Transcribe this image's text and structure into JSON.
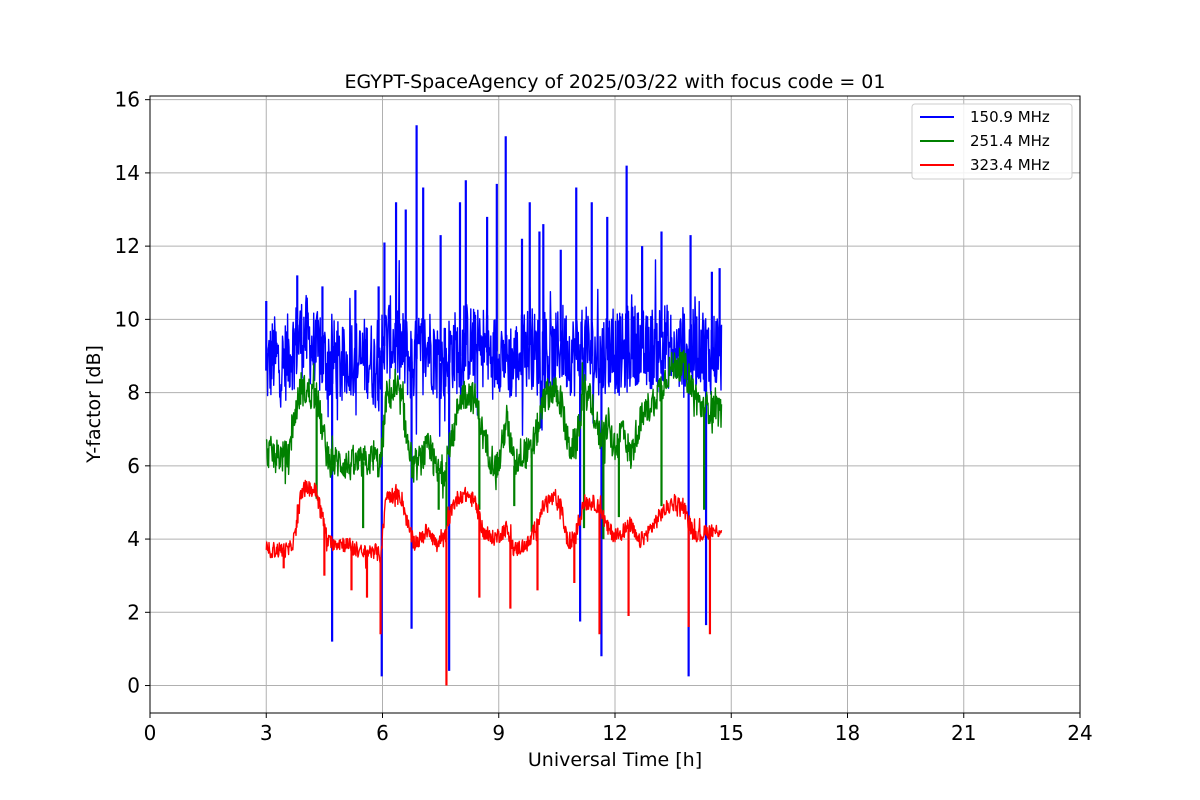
{
  "chart_data": {
    "type": "line",
    "title": "EGYPT-SpaceAgency of 2025/03/22 with focus code = 01",
    "xlabel": "Universal Time [h]",
    "ylabel": "Y-factor [dB]",
    "xlim": [
      0,
      24
    ],
    "ylim": [
      -0.75,
      16.1
    ],
    "xticks": [
      0,
      3,
      6,
      9,
      12,
      15,
      18,
      21,
      24
    ],
    "yticks": [
      0,
      2,
      4,
      6,
      8,
      10,
      12,
      14,
      16
    ],
    "grid": true,
    "legend_position": "top-right",
    "series": [
      {
        "name": "150.9 MHz",
        "color": "#0000ff",
        "x": [
          3.0,
          3.2,
          3.4,
          3.6,
          3.8,
          4.0,
          4.2,
          4.4,
          4.6,
          4.8,
          5.0,
          5.2,
          5.4,
          5.6,
          5.8,
          6.0,
          6.2,
          6.4,
          6.6,
          6.8,
          7.0,
          7.2,
          7.4,
          7.6,
          7.8,
          8.0,
          8.2,
          8.4,
          8.6,
          8.8,
          9.0,
          9.2,
          9.4,
          9.6,
          9.8,
          10.0,
          10.2,
          10.4,
          10.6,
          10.8,
          11.0,
          11.2,
          11.4,
          11.6,
          11.8,
          12.0,
          12.2,
          12.4,
          12.6,
          12.8,
          13.0,
          13.2,
          13.4,
          13.6,
          13.8,
          14.0,
          14.2,
          14.4,
          14.6,
          14.75
        ],
        "y": [
          8.6,
          9.0,
          8.7,
          9.1,
          9.4,
          9.6,
          9.2,
          9.0,
          8.8,
          8.9,
          8.6,
          9.1,
          8.8,
          9.0,
          8.7,
          9.2,
          9.5,
          9.3,
          9.0,
          8.8,
          9.1,
          9.3,
          8.9,
          8.8,
          9.2,
          9.0,
          9.4,
          9.1,
          9.3,
          8.9,
          9.2,
          9.0,
          8.8,
          9.1,
          9.3,
          9.0,
          9.2,
          8.8,
          9.4,
          9.1,
          9.0,
          9.3,
          9.0,
          8.9,
          9.2,
          9.1,
          9.0,
          9.2,
          9.4,
          9.0,
          9.3,
          9.5,
          9.2,
          9.0,
          9.3,
          9.1,
          9.4,
          9.0,
          9.2,
          9.0
        ],
        "spikes": [
          [
            3.0,
            10.5
          ],
          [
            3.8,
            11.2
          ],
          [
            4.45,
            10.9
          ],
          [
            4.7,
            1.2
          ],
          [
            5.3,
            10.8
          ],
          [
            5.9,
            10.9
          ],
          [
            5.98,
            0.25
          ],
          [
            6.05,
            12.1
          ],
          [
            6.35,
            13.2
          ],
          [
            6.6,
            13.0
          ],
          [
            6.75,
            1.55
          ],
          [
            6.88,
            15.3
          ],
          [
            7.05,
            13.6
          ],
          [
            7.5,
            12.3
          ],
          [
            7.72,
            0.4
          ],
          [
            8.0,
            13.2
          ],
          [
            8.15,
            13.8
          ],
          [
            8.7,
            12.8
          ],
          [
            8.95,
            13.7
          ],
          [
            9.18,
            15.0
          ],
          [
            9.6,
            12.2
          ],
          [
            9.8,
            13.2
          ],
          [
            10.05,
            12.4
          ],
          [
            10.15,
            12.6
          ],
          [
            10.6,
            11.9
          ],
          [
            11.0,
            13.6
          ],
          [
            11.1,
            1.75
          ],
          [
            11.4,
            13.2
          ],
          [
            11.65,
            0.8
          ],
          [
            11.8,
            12.8
          ],
          [
            12.3,
            14.2
          ],
          [
            12.7,
            12.0
          ],
          [
            13.2,
            12.4
          ],
          [
            13.9,
            0.25
          ],
          [
            13.95,
            12.3
          ],
          [
            14.35,
            1.65
          ],
          [
            14.5,
            11.3
          ],
          [
            14.7,
            11.4
          ]
        ]
      },
      {
        "name": "251.4 MHz",
        "color": "#008000",
        "x": [
          3.0,
          3.3,
          3.6,
          3.75,
          3.9,
          4.1,
          4.3,
          4.45,
          4.6,
          4.9,
          5.2,
          5.5,
          5.8,
          5.95,
          6.1,
          6.3,
          6.5,
          6.65,
          6.8,
          7.0,
          7.2,
          7.4,
          7.6,
          7.8,
          8.0,
          8.2,
          8.4,
          8.6,
          8.8,
          9.0,
          9.2,
          9.4,
          9.6,
          9.8,
          10.0,
          10.2,
          10.4,
          10.6,
          10.8,
          11.0,
          11.2,
          11.4,
          11.6,
          11.8,
          12.0,
          12.2,
          12.4,
          12.6,
          12.8,
          13.0,
          13.2,
          13.4,
          13.6,
          13.8,
          14.0,
          14.2,
          14.4,
          14.6,
          14.75
        ],
        "y": [
          6.4,
          6.3,
          6.2,
          7.5,
          8.1,
          8.0,
          7.9,
          7.0,
          6.1,
          6.1,
          6.0,
          6.1,
          6.2,
          6.0,
          7.9,
          8.0,
          7.8,
          6.6,
          5.9,
          6.2,
          6.5,
          5.8,
          5.9,
          6.7,
          7.9,
          8.0,
          7.8,
          6.8,
          6.2,
          6.0,
          7.3,
          6.0,
          6.4,
          6.3,
          7.0,
          7.9,
          8.1,
          7.8,
          6.5,
          6.6,
          8.1,
          7.7,
          6.8,
          7.1,
          6.4,
          7.1,
          6.2,
          7.1,
          7.5,
          7.8,
          8.2,
          8.6,
          8.8,
          8.7,
          8.1,
          7.6,
          7.6,
          7.6,
          7.4
        ],
        "spikes": [
          [
            4.3,
            5.1
          ],
          [
            5.5,
            4.3
          ],
          [
            7.45,
            4.8
          ],
          [
            7.65,
            4.0
          ],
          [
            8.5,
            4.8
          ],
          [
            9.4,
            4.9
          ],
          [
            9.85,
            4.2
          ],
          [
            11.2,
            4.3
          ],
          [
            11.7,
            4.0
          ],
          [
            12.1,
            4.6
          ],
          [
            13.2,
            4.9
          ],
          [
            14.3,
            4.8
          ]
        ]
      },
      {
        "name": "323.4 MHz",
        "color": "#ff0000",
        "x": [
          3.0,
          3.3,
          3.6,
          3.75,
          3.9,
          4.1,
          4.3,
          4.45,
          4.6,
          4.9,
          5.2,
          5.5,
          5.8,
          5.95,
          6.1,
          6.3,
          6.5,
          6.65,
          6.8,
          7.0,
          7.2,
          7.4,
          7.6,
          7.8,
          8.0,
          8.2,
          8.4,
          8.6,
          8.8,
          9.0,
          9.2,
          9.4,
          9.6,
          9.8,
          10.0,
          10.2,
          10.4,
          10.6,
          10.8,
          11.0,
          11.2,
          11.4,
          11.6,
          11.8,
          12.0,
          12.2,
          12.4,
          12.6,
          12.8,
          13.0,
          13.2,
          13.4,
          13.6,
          13.8,
          14.0,
          14.2,
          14.4,
          14.6,
          14.75
        ],
        "y": [
          3.7,
          3.7,
          3.7,
          4.1,
          5.3,
          5.4,
          5.3,
          4.6,
          3.9,
          3.9,
          3.8,
          3.6,
          3.7,
          3.5,
          5.2,
          5.2,
          5.1,
          4.4,
          3.9,
          4.0,
          4.3,
          3.8,
          4.0,
          4.9,
          5.2,
          5.2,
          5.0,
          4.2,
          4.0,
          4.1,
          4.3,
          3.7,
          3.8,
          3.9,
          4.5,
          5.0,
          5.1,
          4.9,
          3.8,
          4.2,
          5.0,
          5.0,
          4.9,
          4.3,
          4.1,
          4.2,
          4.4,
          3.9,
          4.1,
          4.4,
          4.7,
          4.9,
          5.0,
          4.8,
          4.2,
          4.1,
          4.2,
          4.2,
          4.3
        ],
        "spikes": [
          [
            3.45,
            3.2
          ],
          [
            4.5,
            3.0
          ],
          [
            5.2,
            2.6
          ],
          [
            5.6,
            2.4
          ],
          [
            5.95,
            1.4
          ],
          [
            7.65,
            0.0
          ],
          [
            8.5,
            2.4
          ],
          [
            9.3,
            2.1
          ],
          [
            10.0,
            2.6
          ],
          [
            10.95,
            2.8
          ],
          [
            11.6,
            1.4
          ],
          [
            12.35,
            1.9
          ],
          [
            13.9,
            1.6
          ],
          [
            14.45,
            1.4
          ]
        ]
      }
    ]
  }
}
